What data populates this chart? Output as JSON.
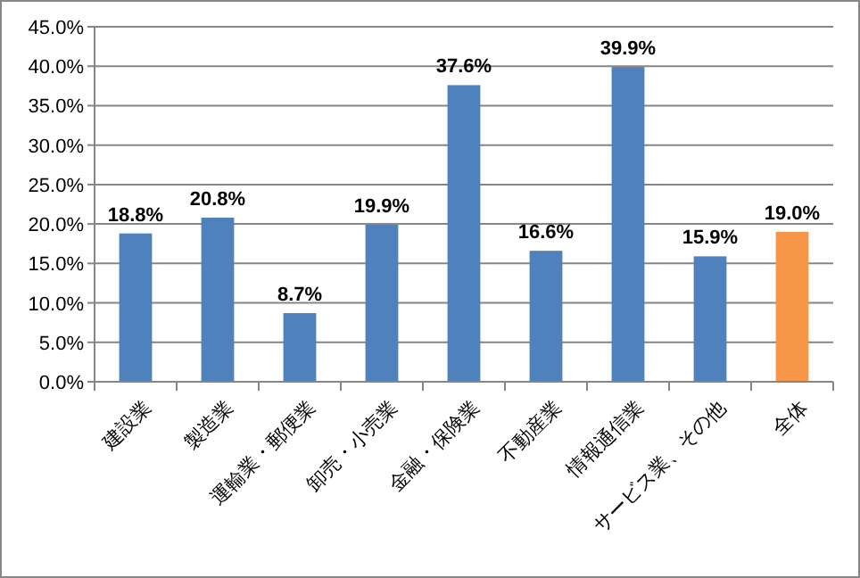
{
  "chart_data": {
    "type": "bar",
    "categories": [
      "建設業",
      "製造業",
      "運輸業・郵便業",
      "卸売・小売業",
      "金融・保険業",
      "不動産業",
      "情報通信業",
      "サービス業、その他",
      "全体"
    ],
    "values": [
      18.8,
      20.8,
      8.7,
      19.9,
      37.6,
      16.6,
      39.9,
      15.9,
      19.0
    ],
    "colors": [
      "#4f81bd",
      "#4f81bd",
      "#4f81bd",
      "#4f81bd",
      "#4f81bd",
      "#4f81bd",
      "#4f81bd",
      "#4f81bd",
      "#f79646"
    ],
    "value_labels": [
      "18.8%",
      "20.8%",
      "8.7%",
      "19.9%",
      "37.6%",
      "16.6%",
      "39.9%",
      "15.9%",
      "19.0%"
    ],
    "ylim": [
      0,
      45
    ],
    "yticks": [
      {
        "value": 0,
        "label": "0.0%"
      },
      {
        "value": 5,
        "label": "5.0%"
      },
      {
        "value": 10,
        "label": "10.0%"
      },
      {
        "value": 15,
        "label": "15.0%"
      },
      {
        "value": 20,
        "label": "20.0%"
      },
      {
        "value": 25,
        "label": "25.0%"
      },
      {
        "value": 30,
        "label": "30.0%"
      },
      {
        "value": 35,
        "label": "35.0%"
      },
      {
        "value": 40,
        "label": "40.0%"
      },
      {
        "value": 45,
        "label": "45.0%"
      }
    ],
    "grid": "y"
  }
}
